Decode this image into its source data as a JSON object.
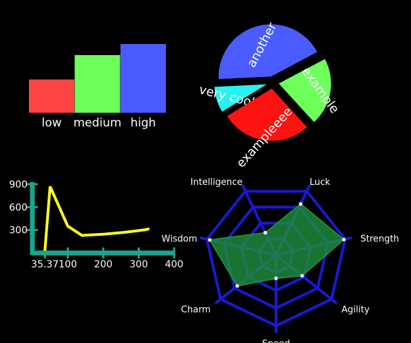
{
  "chart_data": [
    {
      "type": "bar",
      "categories": [
        "low",
        "medium",
        "high"
      ],
      "values": [
        1.5,
        2.6,
        3.1
      ],
      "colors": [
        "#ff4444",
        "#6eff5a",
        "#4a5cff"
      ],
      "ylim": [
        0,
        3.1
      ],
      "axes_visible": false
    },
    {
      "type": "pie",
      "labels": [
        "another",
        "very cool",
        "exampleeee",
        "example"
      ],
      "values": [
        43,
        8,
        28,
        21
      ],
      "colors": [
        "#4a5cff",
        "#27f2f2",
        "#ff1212",
        "#6eff5a"
      ],
      "exploded": true,
      "label_color": "#ffffff"
    },
    {
      "type": "line",
      "x": [
        35.37,
        50,
        100,
        140,
        200,
        260,
        320,
        330
      ],
      "y": [
        30,
        870,
        350,
        230,
        245,
        270,
        305,
        318
      ],
      "color": "#ffff22",
      "axis_color": "#1aa68a",
      "xticks": [
        35.37,
        100,
        200,
        300,
        400
      ],
      "xtick_labels": [
        "35.37",
        "100",
        "200",
        "300",
        "400"
      ],
      "yticks": [
        300,
        600,
        900
      ],
      "ytick_labels": [
        "300",
        "600",
        "900"
      ],
      "xlim": [
        0,
        400
      ],
      "ylim": [
        0,
        900
      ],
      "grid": false
    },
    {
      "type": "radar",
      "axes": [
        "Luck",
        "Strength",
        "Agility",
        "Speed",
        "Charm",
        "Wisdom",
        "Intelligence"
      ],
      "values": [
        0.8,
        0.98,
        0.47,
        0.33,
        0.7,
        0.96,
        0.35
      ],
      "max": 1,
      "rings": 4,
      "fill_color": "#1e8c3c",
      "grid_color": "#1a1ad0",
      "point_color": "#ffffff"
    }
  ]
}
